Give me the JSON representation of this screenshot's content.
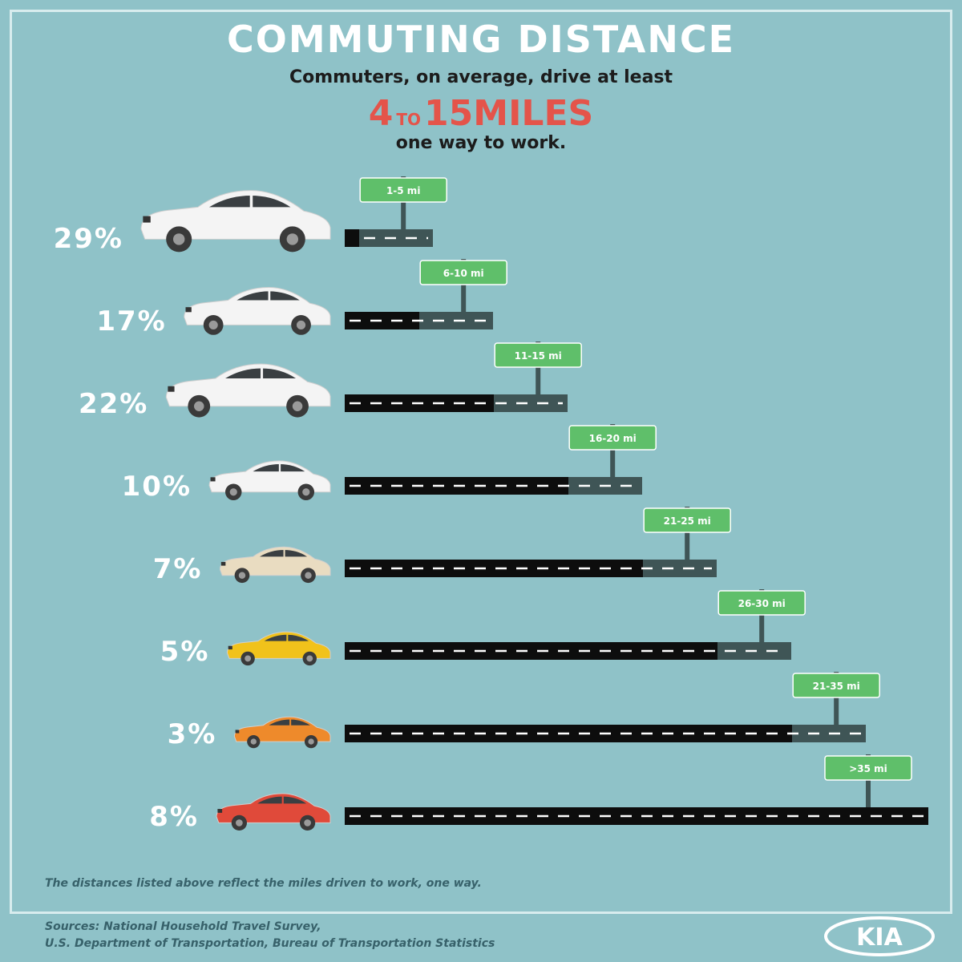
{
  "header": {
    "title": "COMMUTING DISTANCE",
    "subtitle": "Commuters, on average, drive at least",
    "highlight_from": "4",
    "highlight_to_word": "TO",
    "highlight_to": "15MILES",
    "subtitle2": "one way to work."
  },
  "chart_data": {
    "type": "bar",
    "orientation": "horizontal",
    "categories": [
      "1-5 mi",
      "6-10 mi",
      "11-15 mi",
      "16-20 mi",
      "21-25 mi",
      "26-30 mi",
      "21-35 mi",
      ">35 mi"
    ],
    "values": [
      29,
      17,
      22,
      10,
      7,
      5,
      3,
      8
    ],
    "value_labels": [
      "29%",
      "17%",
      "22%",
      "10%",
      "7%",
      "5%",
      "3%",
      "8%"
    ],
    "unit": "%",
    "car_colors": [
      "#f4f4f4",
      "#f4f4f4",
      "#f4f4f4",
      "#f4f4f4",
      "#e9dcc1",
      "#f1c21b",
      "#ee8a2b",
      "#e04a3a"
    ],
    "colors": {
      "road_driven": "#0d0d0d",
      "road_ahead": "#3f5556",
      "road_dash": "#ffffff",
      "sign": "#5fbf6a",
      "sign_border": "#ffffff",
      "sign_post": "#3f5556",
      "value_label": "#ffffff"
    }
  },
  "footer": {
    "note": "The distances listed above reflect the miles driven to work, one way.",
    "source_line1": "Sources: National Household Travel Survey,",
    "source_line2": "U.S. Department of Transportation, Bureau of Transportation Statistics",
    "logo_text": "KIA"
  }
}
